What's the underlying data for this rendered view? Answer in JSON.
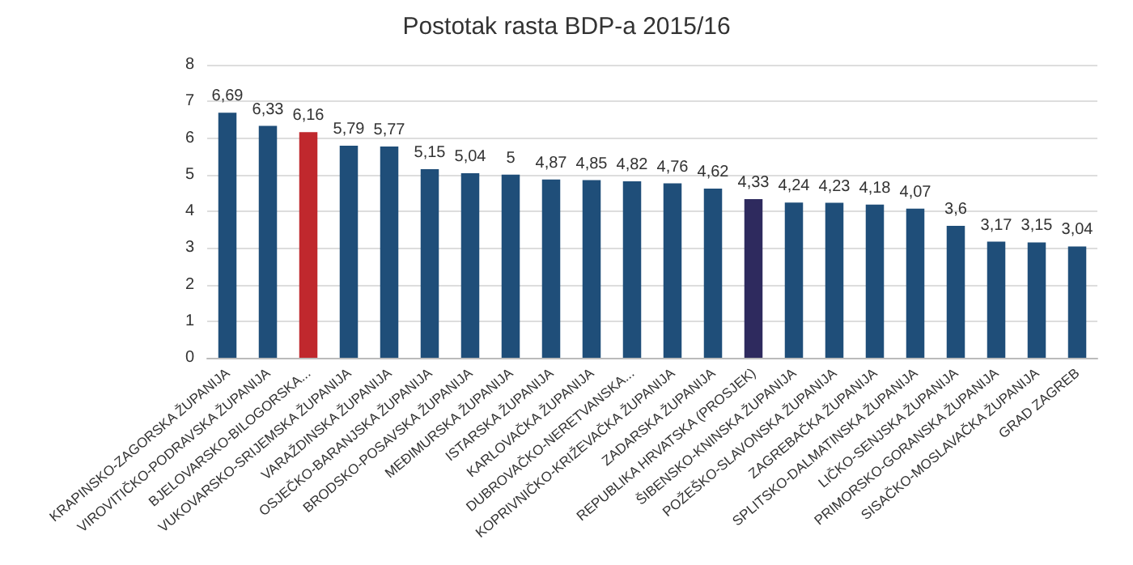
{
  "chart_data": {
    "type": "bar",
    "title": "Postotak rasta BDP-a 2015/16",
    "categories": [
      "KRAPINSKO-ZAGORSKA ŽUPANIJA",
      "VIROVITIČKO-PODRAVSKA ŽUPANIJA",
      "BJELOVARSKO-BILOGORSKA...",
      "VUKOVARSKO-SRIJEMSKA ŽUPANIJA",
      "VARAŽDINSKA ŽUPANIJA",
      "OSJEČKO-BARANJSKA ŽUPANIJA",
      "BRODSKO-POSAVSKA ŽUPANIJA",
      "MEĐIMURSKA ŽUPANIJA",
      "ISTARSKA ŽUPANIJA",
      "KARLOVAČKA ŽUPANIJA",
      "DUBROVAČKO-NERETVANSKA...",
      "KOPRIVNIČKO-KRIŽEVAČKA ŽUPANIJA",
      "ZADARSKA ŽUPANIJA",
      "REPUBLIKA HRVATSKA (PROSJEK)",
      "ŠIBENSKO-KNINSKA ŽUPANIJA",
      "POŽEŠKO-SLAVONSKA ŽUPANIJA",
      "ZAGREBAČKA ŽUPANIJA",
      "SPLITSKO-DALMATINSKA ŽUPANIJA",
      "LIČKO-SENJSKA ŽUPANIJA",
      "PRIMORSKO-GORANSKA ŽUPANIJA",
      "SISAČKO-MOSLAVAČKA ŽUPANIJA",
      "GRAD ZAGREB"
    ],
    "values": [
      6.69,
      6.33,
      6.16,
      5.79,
      5.77,
      5.15,
      5.04,
      5,
      4.87,
      4.85,
      4.82,
      4.76,
      4.62,
      4.33,
      4.24,
      4.23,
      4.18,
      4.07,
      3.6,
      3.17,
      3.15,
      3.04
    ],
    "value_labels": [
      "6,69",
      "6,33",
      "6,16",
      "5,79",
      "5,77",
      "5,15",
      "5,04",
      "5",
      "4,87",
      "4,85",
      "4,82",
      "4,76",
      "4,62",
      "4,33",
      "4,24",
      "4,23",
      "4,18",
      "4,07",
      "3,6",
      "3,17",
      "3,15",
      "3,04"
    ],
    "colors": [
      "#1f4e79",
      "#1f4e79",
      "#c0282d",
      "#1f4e79",
      "#1f4e79",
      "#1f4e79",
      "#1f4e79",
      "#1f4e79",
      "#1f4e79",
      "#1f4e79",
      "#1f4e79",
      "#1f4e79",
      "#1f4e79",
      "#2e2a5e",
      "#1f4e79",
      "#1f4e79",
      "#1f4e79",
      "#1f4e79",
      "#1f4e79",
      "#1f4e79",
      "#1f4e79",
      "#1f4e79"
    ],
    "ylim": [
      0,
      8
    ],
    "yticks": [
      0,
      1,
      2,
      3,
      4,
      5,
      6,
      7,
      8
    ],
    "grid": "y"
  }
}
